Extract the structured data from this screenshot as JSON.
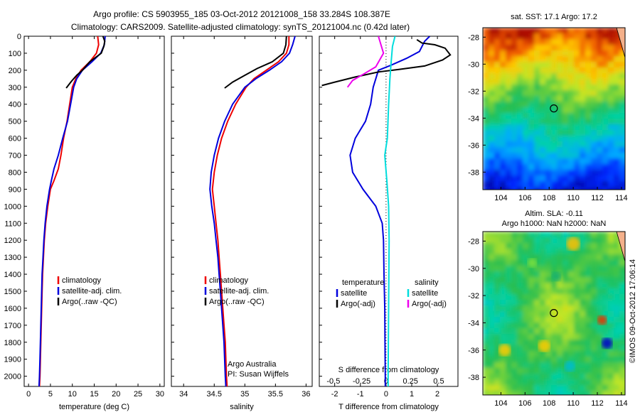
{
  "header": {
    "line1": "Argo profile: CS 5903955_185 03-Oct-2012 20121008_158 33.284S 108.387E",
    "line2": "Climatology: CARS2009. Satellite-adjusted climatology: synTS_20121004.nc (0.42d later)"
  },
  "colors": {
    "clim": "#ee0000",
    "sat": "#0000dd",
    "argo": "#000000",
    "sal_sat": "#00dddd",
    "sal_argo": "#ee00ee"
  },
  "chart_data": [
    {
      "type": "line",
      "name": "temperature-panel",
      "xlabel": "temperature (deg C)",
      "xlim": [
        -1,
        31
      ],
      "ylim": [
        0,
        2060
      ],
      "y_inverted": true,
      "xticks": [
        0,
        5,
        10,
        15,
        20,
        25,
        30
      ],
      "yticks": [
        0,
        100,
        200,
        300,
        400,
        500,
        600,
        700,
        800,
        900,
        1000,
        1100,
        1200,
        1300,
        1400,
        1500,
        1600,
        1700,
        1800,
        1900,
        2000
      ],
      "legend": [
        "climatology",
        "satellite-adj. clim.",
        "Argo(..raw -QC)"
      ],
      "series": [
        {
          "name": "climatology",
          "color": "#ee0000",
          "points": [
            [
              15.8,
              0
            ],
            [
              16,
              50
            ],
            [
              15.5,
              100
            ],
            [
              14,
              150
            ],
            [
              12,
              200
            ],
            [
              10.8,
              250
            ],
            [
              10,
              300
            ],
            [
              9.4,
              400
            ],
            [
              8.8,
              500
            ],
            [
              8,
              600
            ],
            [
              7.4,
              700
            ],
            [
              6.8,
              780
            ],
            [
              5.8,
              850
            ],
            [
              5,
              900
            ],
            [
              4.4,
              1000
            ],
            [
              3.9,
              1100
            ],
            [
              3.6,
              1200
            ],
            [
              3.4,
              1300
            ],
            [
              3.2,
              1400
            ],
            [
              3.1,
              1500
            ],
            [
              3.0,
              1600
            ],
            [
              2.9,
              1700
            ],
            [
              2.8,
              1800
            ],
            [
              2.7,
              1900
            ],
            [
              2.6,
              2000
            ],
            [
              2.5,
              2060
            ]
          ]
        },
        {
          "name": "satellite-adj. clim.",
          "color": "#0000dd",
          "points": [
            [
              17.5,
              0
            ],
            [
              17.3,
              50
            ],
            [
              16.5,
              100
            ],
            [
              14.5,
              150
            ],
            [
              12.3,
              200
            ],
            [
              11,
              250
            ],
            [
              10.3,
              300
            ],
            [
              9.6,
              400
            ],
            [
              8.9,
              500
            ],
            [
              7.8,
              600
            ],
            [
              6.8,
              700
            ],
            [
              5.8,
              780
            ],
            [
              5.2,
              850
            ],
            [
              4.8,
              900
            ],
            [
              4.2,
              1000
            ],
            [
              3.8,
              1100
            ],
            [
              3.5,
              1200
            ],
            [
              3.3,
              1300
            ],
            [
              3.1,
              1400
            ],
            [
              3.0,
              1500
            ],
            [
              2.9,
              1600
            ],
            [
              2.8,
              1700
            ],
            [
              2.7,
              1800
            ],
            [
              2.6,
              1900
            ],
            [
              2.5,
              2000
            ],
            [
              2.4,
              2060
            ]
          ]
        },
        {
          "name": "Argo(..raw -QC)",
          "color": "#000000",
          "points": [
            [
              17,
              0
            ],
            [
              17.4,
              30
            ],
            [
              17.2,
              60
            ],
            [
              16.6,
              100
            ],
            [
              14,
              150
            ],
            [
              12.3,
              200
            ],
            [
              11,
              230
            ],
            [
              9.8,
              265
            ],
            [
              8.6,
              305
            ]
          ]
        }
      ],
      "annotations": []
    },
    {
      "type": "line",
      "name": "salinity-panel",
      "xlabel": "salinity",
      "xlim": [
        33.8,
        36.1
      ],
      "ylim": [
        0,
        2060
      ],
      "y_inverted": true,
      "xticks": [
        34,
        34.5,
        35,
        35.5,
        36
      ],
      "yticks": [],
      "legend": [
        "climatology",
        "satellite-adj. clim.",
        "Argo(..raw -QC)"
      ],
      "series": [
        {
          "name": "climatology",
          "color": "#ee0000",
          "points": [
            [
              35.72,
              0
            ],
            [
              35.72,
              50
            ],
            [
              35.68,
              100
            ],
            [
              35.55,
              150
            ],
            [
              35.35,
              200
            ],
            [
              35.15,
              250
            ],
            [
              35.02,
              300
            ],
            [
              34.85,
              400
            ],
            [
              34.72,
              500
            ],
            [
              34.62,
              600
            ],
            [
              34.55,
              700
            ],
            [
              34.5,
              800
            ],
            [
              34.47,
              900
            ],
            [
              34.5,
              1000
            ],
            [
              34.53,
              1100
            ],
            [
              34.56,
              1200
            ],
            [
              34.58,
              1300
            ],
            [
              34.6,
              1400
            ],
            [
              34.62,
              1500
            ],
            [
              34.64,
              1600
            ],
            [
              34.66,
              1700
            ],
            [
              34.68,
              1800
            ],
            [
              34.69,
              1900
            ],
            [
              34.7,
              2000
            ],
            [
              34.71,
              2060
            ]
          ]
        },
        {
          "name": "satellite-adj. clim.",
          "color": "#0000dd",
          "points": [
            [
              35.82,
              0
            ],
            [
              35.78,
              50
            ],
            [
              35.73,
              100
            ],
            [
              35.6,
              150
            ],
            [
              35.4,
              200
            ],
            [
              35.18,
              250
            ],
            [
              35.0,
              300
            ],
            [
              34.8,
              400
            ],
            [
              34.67,
              500
            ],
            [
              34.57,
              600
            ],
            [
              34.5,
              700
            ],
            [
              34.45,
              800
            ],
            [
              34.43,
              900
            ],
            [
              34.46,
              1000
            ],
            [
              34.5,
              1100
            ],
            [
              34.53,
              1200
            ],
            [
              34.56,
              1300
            ],
            [
              34.58,
              1400
            ],
            [
              34.6,
              1500
            ],
            [
              34.62,
              1600
            ],
            [
              34.64,
              1700
            ],
            [
              34.66,
              1800
            ],
            [
              34.67,
              1900
            ],
            [
              34.68,
              2000
            ],
            [
              34.69,
              2060
            ]
          ]
        },
        {
          "name": "Argo(..raw -QC)",
          "color": "#000000",
          "points": [
            [
              35.68,
              0
            ],
            [
              35.67,
              50
            ],
            [
              35.63,
              100
            ],
            [
              35.45,
              150
            ],
            [
              35.2,
              190
            ],
            [
              35.0,
              230
            ],
            [
              34.8,
              270
            ],
            [
              34.67,
              305
            ]
          ]
        }
      ],
      "annotations": [
        "Argo Australia",
        "PI: Susan Wijffels"
      ]
    },
    {
      "type": "line",
      "name": "difference-panel",
      "xlabel": "T difference from climatology",
      "xlabel_top": "S difference from climatology",
      "xlim": [
        -2.6,
        2.8
      ],
      "ylim": [
        0,
        2060
      ],
      "y_inverted": true,
      "xticks": [
        -2,
        -1,
        0,
        1,
        2
      ],
      "xticks_salinity": [
        "-0.5",
        "-0.25",
        "0",
        "0.25",
        "0.5"
      ],
      "yticks": [],
      "legend_titles": [
        "temperature",
        "salinity"
      ],
      "legend": [
        "satellite",
        "Argo(-adj)",
        "satellite",
        "Argo(-adj)"
      ],
      "series": [
        {
          "name": "satellite",
          "group": "temperature",
          "color": "#0000dd",
          "points": [
            [
              1.7,
              0
            ],
            [
              1.5,
              30
            ],
            [
              1.3,
              90
            ],
            [
              0.8,
              130
            ],
            [
              0.2,
              170
            ],
            [
              -0.3,
              200
            ],
            [
              -0.5,
              300
            ],
            [
              -0.6,
              400
            ],
            [
              -0.8,
              500
            ],
            [
              -1.2,
              600
            ],
            [
              -1.4,
              700
            ],
            [
              -1.3,
              800
            ],
            [
              -0.9,
              900
            ],
            [
              -0.4,
              1000
            ],
            [
              -0.15,
              1100
            ],
            [
              -0.1,
              1200
            ],
            [
              -0.08,
              1400
            ],
            [
              -0.05,
              1600
            ],
            [
              -0.04,
              1800
            ],
            [
              -0.03,
              2000
            ],
            [
              -0.03,
              2060
            ]
          ]
        },
        {
          "name": "Argo(-adj)",
          "group": "temperature",
          "color": "#000000",
          "points": [
            [
              1.2,
              20
            ],
            [
              1.4,
              40
            ],
            [
              1.9,
              50
            ],
            [
              2.3,
              70
            ],
            [
              2.5,
              110
            ],
            [
              2.2,
              140
            ],
            [
              1.5,
              175
            ],
            [
              0.5,
              195
            ],
            [
              -0.3,
              210
            ],
            [
              -1.2,
              240
            ],
            [
              -2.0,
              270
            ],
            [
              -2.5,
              290
            ]
          ]
        },
        {
          "name": "satellite",
          "group": "salinity",
          "color": "#00dddd",
          "points": [
            [
              0.35,
              0
            ],
            [
              0.25,
              60
            ],
            [
              0.2,
              150
            ],
            [
              0.15,
              250
            ],
            [
              0.1,
              400
            ],
            [
              0.05,
              600
            ],
            [
              -0.05,
              700
            ],
            [
              0.03,
              850
            ],
            [
              0.1,
              1000
            ],
            [
              0.12,
              1200
            ],
            [
              0.1,
              1600
            ],
            [
              0.08,
              2000
            ],
            [
              0.08,
              2060
            ]
          ]
        },
        {
          "name": "Argo(-adj)",
          "group": "salinity",
          "color": "#ee00ee",
          "points": [
            [
              -0.3,
              0
            ],
            [
              -0.2,
              50
            ],
            [
              -0.1,
              100
            ],
            [
              -0.4,
              180
            ],
            [
              -0.9,
              225
            ],
            [
              -1.3,
              260
            ],
            [
              -1.5,
              300
            ]
          ]
        }
      ],
      "annotations": []
    },
    {
      "type": "heatmap",
      "name": "sst-map",
      "title": "sat. SST: 17.1  Argo: 17.2",
      "xlim": [
        102.5,
        114.3
      ],
      "ylim": [
        -39.3,
        -27.3
      ],
      "xticks": [
        104,
        106,
        108,
        110,
        112,
        114
      ],
      "yticks": [
        -28,
        -30,
        -32,
        -34,
        -36,
        -38
      ],
      "marker": [
        108.39,
        -33.28
      ]
    },
    {
      "type": "heatmap",
      "name": "sla-map",
      "title": "Altim. SLA: -0.11",
      "subtitle": "Argo h1000: NaN h2000: NaN",
      "xlim": [
        102.5,
        114.3
      ],
      "ylim": [
        -39.3,
        -27.3
      ],
      "xticks": [
        104,
        106,
        108,
        110,
        112,
        114
      ],
      "yticks": [
        -28,
        -30,
        -32,
        -34,
        -36,
        -38
      ],
      "marker": [
        108.39,
        -33.28
      ]
    }
  ],
  "footer": {
    "side_text": "©IMOS 09-Oct-2012 17:06:14"
  }
}
